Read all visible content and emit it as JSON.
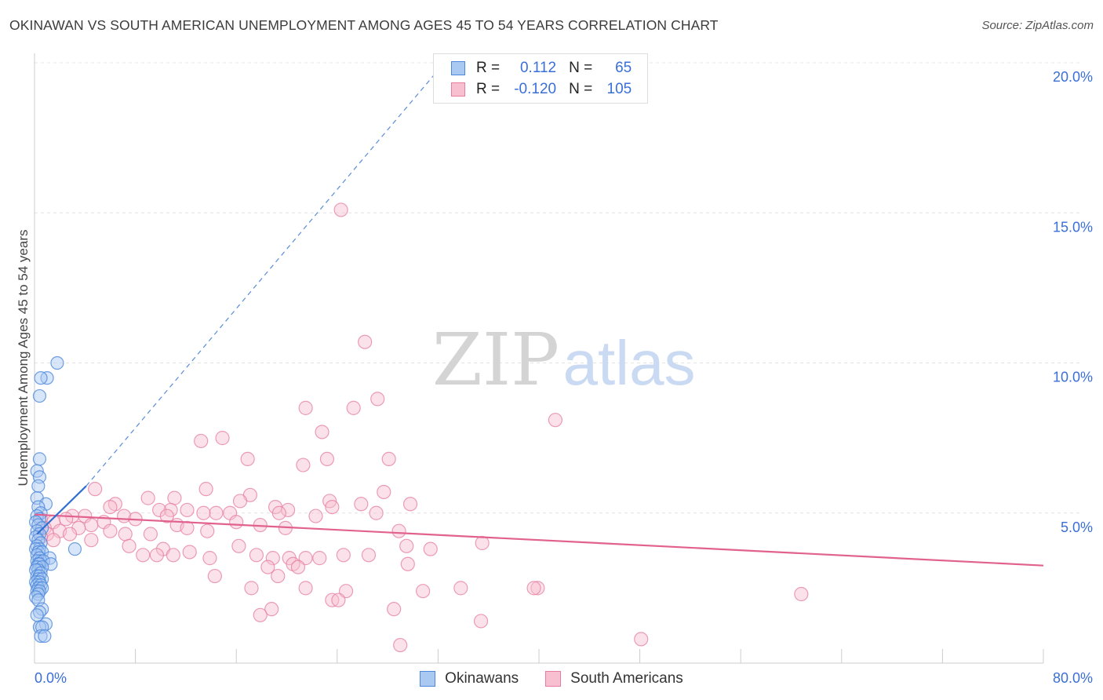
{
  "title": "OKINAWAN VS SOUTH AMERICAN UNEMPLOYMENT AMONG AGES 45 TO 54 YEARS CORRELATION CHART",
  "source": "Source: ZipAtlas.com",
  "watermark": {
    "zip": "ZIP",
    "atlas": "atlas"
  },
  "legend": {
    "rows": [
      {
        "r_label": "R =",
        "r_value": "0.112",
        "n_label": "N =",
        "n_value": "65"
      },
      {
        "r_label": "R =",
        "r_value": "-0.120",
        "n_label": "N =",
        "n_value": "105"
      }
    ]
  },
  "colors": {
    "okinawan_fill": "#a9c8f2",
    "okinawan_stroke": "#4d88db",
    "okinawan_line": "#2f6fd0",
    "south_fill": "#f7bfd0",
    "south_stroke": "#e67d9f",
    "south_line": "#e1628e",
    "axis_label": "#3a6fd8",
    "grid": "#e4e4e4"
  },
  "chart_data": {
    "type": "scatter",
    "title": "OKINAWAN VS SOUTH AMERICAN UNEMPLOYMENT AMONG AGES 45 TO 54 YEARS CORRELATION CHART",
    "xlabel": "",
    "ylabel": "Unemployment Among Ages 45 to 54 years",
    "xlim": [
      0,
      80
    ],
    "ylim": [
      0,
      20
    ],
    "x_tick_labels": [
      "0.0%",
      "80.0%"
    ],
    "y_ticks": [
      5,
      10,
      15,
      20
    ],
    "y_tick_labels": [
      "5.0%",
      "10.0%",
      "15.0%",
      "20.0%"
    ],
    "series": [
      {
        "name": "Okinawans",
        "r": 0.112,
        "n": 65,
        "trend_solid": [
          [
            0.2,
            4.3
          ],
          [
            4.1,
            5.9
          ]
        ],
        "trend_dashed": [
          [
            4.1,
            5.9
          ],
          [
            32.5,
            20.0
          ]
        ],
        "points": [
          [
            1.8,
            10.0
          ],
          [
            1.0,
            9.5
          ],
          [
            0.5,
            9.5
          ],
          [
            0.4,
            8.9
          ],
          [
            0.4,
            6.8
          ],
          [
            0.2,
            6.4
          ],
          [
            0.4,
            6.2
          ],
          [
            0.3,
            5.9
          ],
          [
            0.2,
            5.5
          ],
          [
            0.9,
            5.3
          ],
          [
            0.3,
            5.2
          ],
          [
            0.5,
            5.0
          ],
          [
            0.2,
            4.9
          ],
          [
            0.4,
            4.8
          ],
          [
            0.1,
            4.7
          ],
          [
            0.3,
            4.6
          ],
          [
            0.6,
            4.5
          ],
          [
            0.2,
            4.4
          ],
          [
            0.4,
            4.3
          ],
          [
            0.1,
            4.2
          ],
          [
            0.3,
            4.1
          ],
          [
            0.5,
            4.0
          ],
          [
            0.2,
            3.9
          ],
          [
            0.4,
            3.8
          ],
          [
            0.1,
            3.8
          ],
          [
            3.2,
            3.8
          ],
          [
            0.3,
            3.7
          ],
          [
            0.6,
            3.7
          ],
          [
            0.2,
            3.6
          ],
          [
            0.4,
            3.5
          ],
          [
            1.2,
            3.5
          ],
          [
            0.5,
            3.4
          ],
          [
            0.2,
            3.4
          ],
          [
            0.7,
            3.4
          ],
          [
            0.3,
            3.3
          ],
          [
            1.3,
            3.3
          ],
          [
            0.4,
            3.3
          ],
          [
            0.2,
            3.2
          ],
          [
            0.6,
            3.2
          ],
          [
            0.3,
            3.1
          ],
          [
            0.1,
            3.1
          ],
          [
            0.5,
            3.0
          ],
          [
            0.2,
            2.9
          ],
          [
            0.4,
            2.9
          ],
          [
            0.3,
            2.8
          ],
          [
            0.6,
            2.8
          ],
          [
            0.1,
            2.7
          ],
          [
            0.4,
            2.7
          ],
          [
            0.2,
            2.6
          ],
          [
            0.5,
            2.6
          ],
          [
            0.3,
            2.5
          ],
          [
            0.6,
            2.5
          ],
          [
            0.2,
            2.4
          ],
          [
            0.4,
            2.4
          ],
          [
            0.3,
            2.3
          ],
          [
            0.1,
            2.2
          ],
          [
            0.3,
            2.1
          ],
          [
            0.6,
            1.8
          ],
          [
            0.4,
            1.7
          ],
          [
            0.2,
            1.6
          ],
          [
            0.9,
            1.3
          ],
          [
            0.4,
            1.2
          ],
          [
            0.6,
            1.2
          ],
          [
            0.5,
            0.9
          ],
          [
            0.8,
            0.9
          ]
        ]
      },
      {
        "name": "South Americans",
        "r": -0.12,
        "n": 105,
        "trend": [
          [
            0.0,
            4.95
          ],
          [
            80.0,
            3.25
          ]
        ],
        "points": [
          [
            24.3,
            15.1
          ],
          [
            26.2,
            10.7
          ],
          [
            27.2,
            8.8
          ],
          [
            21.5,
            8.5
          ],
          [
            25.3,
            8.5
          ],
          [
            41.3,
            8.1
          ],
          [
            22.8,
            7.7
          ],
          [
            14.9,
            7.5
          ],
          [
            13.2,
            7.4
          ],
          [
            16.9,
            6.8
          ],
          [
            23.2,
            6.8
          ],
          [
            28.1,
            6.8
          ],
          [
            21.3,
            6.6
          ],
          [
            4.8,
            5.8
          ],
          [
            13.6,
            5.8
          ],
          [
            27.7,
            5.7
          ],
          [
            17.1,
            5.6
          ],
          [
            9.0,
            5.5
          ],
          [
            11.1,
            5.5
          ],
          [
            16.3,
            5.4
          ],
          [
            6.4,
            5.3
          ],
          [
            23.4,
            5.4
          ],
          [
            29.8,
            5.3
          ],
          [
            6.0,
            5.2
          ],
          [
            12.1,
            5.1
          ],
          [
            10.8,
            5.1
          ],
          [
            14.4,
            5.0
          ],
          [
            19.1,
            5.2
          ],
          [
            20.1,
            5.1
          ],
          [
            25.9,
            5.3
          ],
          [
            23.6,
            5.2
          ],
          [
            27.1,
            5.0
          ],
          [
            9.9,
            5.1
          ],
          [
            15.5,
            5.0
          ],
          [
            3.0,
            4.9
          ],
          [
            4.0,
            4.9
          ],
          [
            7.1,
            4.9
          ],
          [
            10.5,
            4.9
          ],
          [
            13.4,
            5.0
          ],
          [
            19.4,
            5.0
          ],
          [
            22.3,
            4.9
          ],
          [
            0.5,
            4.8
          ],
          [
            1.5,
            4.7
          ],
          [
            2.5,
            4.8
          ],
          [
            4.5,
            4.6
          ],
          [
            5.5,
            4.7
          ],
          [
            8.0,
            4.8
          ],
          [
            11.3,
            4.6
          ],
          [
            16.0,
            4.7
          ],
          [
            17.9,
            4.6
          ],
          [
            19.9,
            4.5
          ],
          [
            0.8,
            4.5
          ],
          [
            2.0,
            4.4
          ],
          [
            3.5,
            4.5
          ],
          [
            6.0,
            4.4
          ],
          [
            12.1,
            4.5
          ],
          [
            13.7,
            4.4
          ],
          [
            1.0,
            4.3
          ],
          [
            2.8,
            4.3
          ],
          [
            7.2,
            4.3
          ],
          [
            9.2,
            4.3
          ],
          [
            0.5,
            4.2
          ],
          [
            1.5,
            4.1
          ],
          [
            4.5,
            4.1
          ],
          [
            28.9,
            4.4
          ],
          [
            35.5,
            4.0
          ],
          [
            7.5,
            3.9
          ],
          [
            10.2,
            3.8
          ],
          [
            16.2,
            3.9
          ],
          [
            29.5,
            3.9
          ],
          [
            31.4,
            3.8
          ],
          [
            11.0,
            3.6
          ],
          [
            12.3,
            3.7
          ],
          [
            8.6,
            3.6
          ],
          [
            9.7,
            3.6
          ],
          [
            17.6,
            3.6
          ],
          [
            18.9,
            3.5
          ],
          [
            24.5,
            3.6
          ],
          [
            26.5,
            3.6
          ],
          [
            20.2,
            3.5
          ],
          [
            21.5,
            3.5
          ],
          [
            20.5,
            3.3
          ],
          [
            22.6,
            3.5
          ],
          [
            29.6,
            3.3
          ],
          [
            18.5,
            3.2
          ],
          [
            20.9,
            3.2
          ],
          [
            13.9,
            3.5
          ],
          [
            19.3,
            2.9
          ],
          [
            14.3,
            2.9
          ],
          [
            21.5,
            2.5
          ],
          [
            24.7,
            2.4
          ],
          [
            30.8,
            2.4
          ],
          [
            33.8,
            2.5
          ],
          [
            39.9,
            2.5
          ],
          [
            39.6,
            2.5
          ],
          [
            60.8,
            2.3
          ],
          [
            17.2,
            2.5
          ],
          [
            23.6,
            2.1
          ],
          [
            24.1,
            2.1
          ],
          [
            18.8,
            1.8
          ],
          [
            28.5,
            1.8
          ],
          [
            17.9,
            1.6
          ],
          [
            35.4,
            1.4
          ],
          [
            48.1,
            0.8
          ],
          [
            29.0,
            0.6
          ]
        ]
      }
    ]
  },
  "bottom_legend": [
    "Okinawans",
    "South Americans"
  ]
}
